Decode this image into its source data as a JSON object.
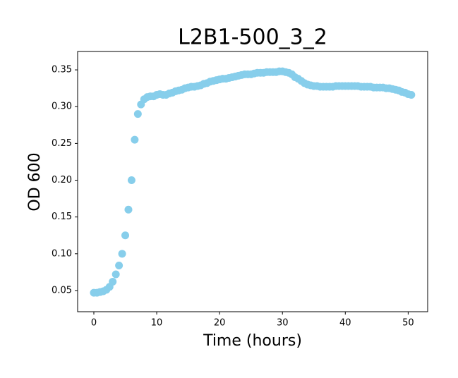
{
  "chart_data": {
    "type": "scatter",
    "title": "L2B1-500_3_2",
    "x_label": "Time (hours)",
    "y_label": "OD 600",
    "x": [
      0,
      0.5,
      1,
      1.5,
      2,
      2.5,
      3,
      3.5,
      4,
      4.5,
      5,
      5.5,
      6,
      6.5,
      7,
      7.5,
      8,
      8.5,
      9,
      9.5,
      10,
      10.5,
      11,
      11.5,
      12,
      12.5,
      13,
      13.5,
      14,
      14.5,
      15,
      15.5,
      16,
      16.5,
      17,
      17.5,
      18,
      18.5,
      19,
      19.5,
      20,
      20.5,
      21,
      21.5,
      22,
      22.5,
      23,
      23.5,
      24,
      24.5,
      25,
      25.5,
      26,
      26.5,
      27,
      27.5,
      28,
      28.5,
      29,
      29.5,
      30,
      30.5,
      31,
      31.5,
      32,
      32.5,
      33,
      33.5,
      34,
      34.5,
      35,
      35.5,
      36,
      36.5,
      37,
      37.5,
      38,
      38.5,
      39,
      39.5,
      40,
      40.5,
      41,
      41.5,
      42,
      42.5,
      43,
      43.5,
      44,
      44.5,
      45,
      45.5,
      46,
      46.5,
      47,
      47.5,
      48,
      48.5,
      49,
      49.5,
      50,
      50.5
    ],
    "values": [
      0.047,
      0.047,
      0.048,
      0.049,
      0.051,
      0.055,
      0.062,
      0.072,
      0.084,
      0.1,
      0.125,
      0.16,
      0.2,
      0.255,
      0.29,
      0.303,
      0.31,
      0.313,
      0.314,
      0.314,
      0.316,
      0.317,
      0.316,
      0.316,
      0.318,
      0.319,
      0.321,
      0.322,
      0.323,
      0.325,
      0.326,
      0.327,
      0.327,
      0.328,
      0.329,
      0.331,
      0.332,
      0.334,
      0.335,
      0.336,
      0.337,
      0.338,
      0.338,
      0.339,
      0.34,
      0.341,
      0.342,
      0.343,
      0.344,
      0.344,
      0.344,
      0.345,
      0.346,
      0.346,
      0.346,
      0.347,
      0.347,
      0.347,
      0.347,
      0.348,
      0.348,
      0.347,
      0.346,
      0.344,
      0.34,
      0.338,
      0.335,
      0.332,
      0.33,
      0.329,
      0.328,
      0.328,
      0.327,
      0.327,
      0.327,
      0.327,
      0.327,
      0.328,
      0.328,
      0.328,
      0.328,
      0.328,
      0.328,
      0.328,
      0.328,
      0.327,
      0.327,
      0.327,
      0.327,
      0.326,
      0.326,
      0.326,
      0.326,
      0.325,
      0.325,
      0.324,
      0.323,
      0.322,
      0.32,
      0.319,
      0.317,
      0.316
    ],
    "color": "#87ceeb",
    "xlim": [
      -2.58,
      53.1
    ],
    "xticks": [
      0,
      10,
      20,
      30,
      40,
      50
    ],
    "ylim": [
      0.0212,
      0.375
    ],
    "yticks": [
      0.05,
      {
        "value": 0.1,
        "label": "0.10"
      },
      0.15,
      {
        "value": 0.2,
        "label": "0.20"
      },
      0.25,
      {
        "value": 0.3,
        "label": "0.30"
      },
      0.35
    ],
    "grid": false
  }
}
